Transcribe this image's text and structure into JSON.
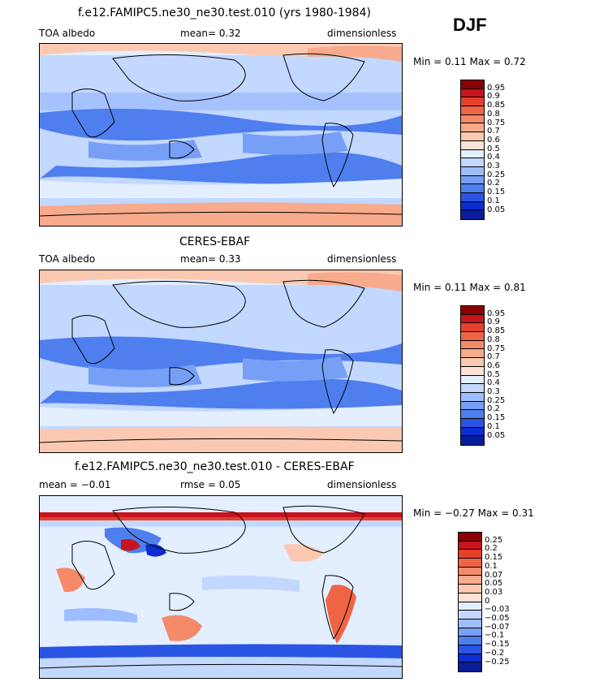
{
  "season": "DJF",
  "panels": [
    {
      "title": "f.e12.FAMIPC5.ne30_ne30.test.010 (yrs 1980-1984)",
      "left_label": "TOA albedo",
      "mid_label": "mean=   0.32",
      "right_label": "dimensionless",
      "minmax": "Min =    0.11  Max =    0.72",
      "colorbar": {
        "labels": [
          "0.95",
          "0.9",
          "0.85",
          "0.8",
          "0.75",
          "0.7",
          "0.6",
          "0.5",
          "0.4",
          "0.3",
          "0.25",
          "0.2",
          "0.15",
          "0.1",
          "0.05"
        ],
        "colors": [
          "#8b0000",
          "#c8141e",
          "#e6402d",
          "#f06446",
          "#f58a6a",
          "#f8aa8c",
          "#fbc9b1",
          "#fde3d4",
          "#e3eeff",
          "#c2d8ff",
          "#9dbdff",
          "#779ff6",
          "#4f7eee",
          "#2a55e4",
          "#0b2ed2",
          "#071d9c"
        ]
      }
    },
    {
      "title": "CERES-EBAF",
      "left_label": "TOA albedo",
      "mid_label": "mean=   0.33",
      "right_label": "dimensionless",
      "minmax": "Min =    0.11  Max =    0.81",
      "colorbar": {
        "labels": [
          "0.95",
          "0.9",
          "0.85",
          "0.8",
          "0.75",
          "0.7",
          "0.6",
          "0.5",
          "0.4",
          "0.3",
          "0.25",
          "0.2",
          "0.15",
          "0.1",
          "0.05"
        ],
        "colors": [
          "#8b0000",
          "#c8141e",
          "#e6402d",
          "#f06446",
          "#f58a6a",
          "#f8aa8c",
          "#fbc9b1",
          "#fde3d4",
          "#e3eeff",
          "#c2d8ff",
          "#9dbdff",
          "#779ff6",
          "#4f7eee",
          "#2a55e4",
          "#0b2ed2",
          "#071d9c"
        ]
      }
    },
    {
      "title": "f.e12.FAMIPC5.ne30_ne30.test.010 - CERES-EBAF",
      "left_label": "mean =   −0.01",
      "mid_label": "rmse =    0.05",
      "right_label": "dimensionless",
      "minmax": "Min =   −0.27  Max =    0.31",
      "colorbar": {
        "labels": [
          "0.25",
          "0.2",
          "0.15",
          "0.1",
          "0.07",
          "0.05",
          "0.03",
          "0",
          "−0.03",
          "−0.05",
          "−0.07",
          "−0.1",
          "−0.15",
          "−0.2",
          "−0.25"
        ],
        "colors": [
          "#8b0000",
          "#c8141e",
          "#e6402d",
          "#f06446",
          "#f58a6a",
          "#f8aa8c",
          "#fbc9b1",
          "#fde3d4",
          "#e3eeff",
          "#c2d8ff",
          "#9dbdff",
          "#779ff6",
          "#4f7eee",
          "#2a55e4",
          "#0b2ed2",
          "#071d9c"
        ]
      }
    }
  ],
  "chart_data": [
    {
      "type": "heatmap",
      "title": "f.e12.FAMIPC5.ne30_ne30.test.010 (yrs 1980-1984)",
      "variable": "TOA albedo",
      "units": "dimensionless",
      "mean": 0.32,
      "min": 0.11,
      "max": 0.72,
      "levels": [
        0.05,
        0.1,
        0.15,
        0.2,
        0.25,
        0.3,
        0.4,
        0.5,
        0.6,
        0.7,
        0.75,
        0.8,
        0.85,
        0.9,
        0.95
      ]
    },
    {
      "type": "heatmap",
      "title": "CERES-EBAF",
      "variable": "TOA albedo",
      "units": "dimensionless",
      "mean": 0.33,
      "min": 0.11,
      "max": 0.81,
      "levels": [
        0.05,
        0.1,
        0.15,
        0.2,
        0.25,
        0.3,
        0.4,
        0.5,
        0.6,
        0.7,
        0.75,
        0.8,
        0.85,
        0.9,
        0.95
      ]
    },
    {
      "type": "heatmap",
      "title": "f.e12.FAMIPC5.ne30_ne30.test.010 - CERES-EBAF",
      "units": "dimensionless",
      "mean": -0.01,
      "rmse": 0.05,
      "min": -0.27,
      "max": 0.31,
      "levels": [
        -0.25,
        -0.2,
        -0.15,
        -0.1,
        -0.07,
        -0.05,
        -0.03,
        0,
        0.03,
        0.05,
        0.07,
        0.1,
        0.15,
        0.2,
        0.25
      ]
    }
  ]
}
